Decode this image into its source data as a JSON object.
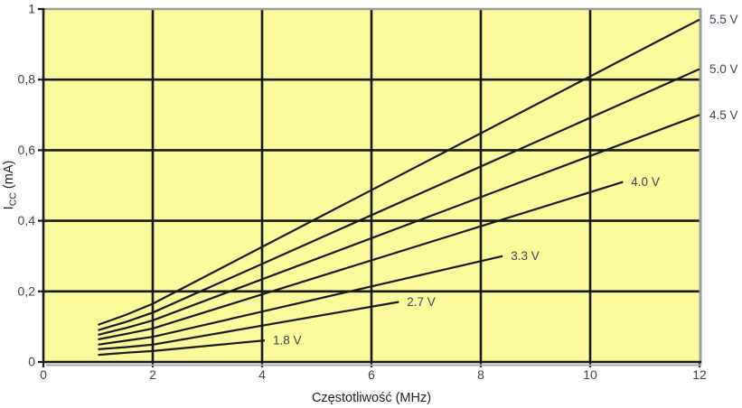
{
  "chart_data": {
    "type": "line",
    "title": "",
    "xlabel": "Częstotliwość (MHz)",
    "ylabel": "Icc (mA)",
    "ylabel_parts": {
      "prefix": "I",
      "sub": "CC",
      "suffix": " (mA)"
    },
    "xlim": [
      0,
      12
    ],
    "ylim": [
      0,
      1
    ],
    "grid": true,
    "legend_position": "line-end-labels",
    "x_ticks": {
      "values": [
        0,
        2,
        4,
        6,
        8,
        10,
        12
      ],
      "labels": [
        "0",
        "2",
        "4",
        "6",
        "8",
        "10",
        "12"
      ]
    },
    "y_ticks": {
      "values": [
        1,
        0.8,
        0.6,
        0.4,
        0.2,
        0
      ],
      "labels": [
        "1",
        "0,8",
        "0,6",
        "0,4",
        "0,2",
        "0"
      ]
    },
    "series": [
      {
        "name": "5.5 V",
        "label_position": "outside-right",
        "points": [
          [
            1,
            0.105
          ],
          [
            1.5,
            0.133
          ],
          [
            2,
            0.165
          ],
          [
            12,
            0.97
          ]
        ]
      },
      {
        "name": "5.0 V",
        "label_position": "outside-right",
        "points": [
          [
            1,
            0.09
          ],
          [
            1.5,
            0.113
          ],
          [
            2,
            0.14
          ],
          [
            12,
            0.83
          ]
        ]
      },
      {
        "name": "4.5 V",
        "label_position": "outside-right",
        "points": [
          [
            1,
            0.077
          ],
          [
            1.5,
            0.096
          ],
          [
            2,
            0.118
          ],
          [
            12,
            0.7
          ]
        ]
      },
      {
        "name": "4.0 V",
        "label_position": "inline-end",
        "points": [
          [
            1,
            0.064
          ],
          [
            1.5,
            0.079
          ],
          [
            2,
            0.095
          ],
          [
            10.6,
            0.51
          ]
        ]
      },
      {
        "name": "3.3 V",
        "label_position": "inline-end",
        "points": [
          [
            1,
            0.049
          ],
          [
            1.5,
            0.06
          ],
          [
            2,
            0.071
          ],
          [
            8.4,
            0.3
          ]
        ]
      },
      {
        "name": "2.7 V",
        "label_position": "inline-end",
        "points": [
          [
            1,
            0.036
          ],
          [
            1.5,
            0.042
          ],
          [
            2,
            0.049
          ],
          [
            6.5,
            0.17
          ]
        ]
      },
      {
        "name": "1.8 V",
        "label_position": "inline-end",
        "points": [
          [
            1,
            0.02
          ],
          [
            1.5,
            0.026
          ],
          [
            2,
            0.031
          ],
          [
            4.05,
            0.061
          ]
        ]
      }
    ],
    "colors": {
      "page_background": "#ffffff",
      "plot_background": "#fafa9d",
      "line": "#1a1a1a",
      "grid": "#1a1a1a",
      "frame_top_right": "#98a09e",
      "shadow": "#a9a9a9",
      "tick_text": "#3d4152",
      "series_label_text": "#3d4152",
      "axis_title_text": "#1c1f26"
    }
  }
}
